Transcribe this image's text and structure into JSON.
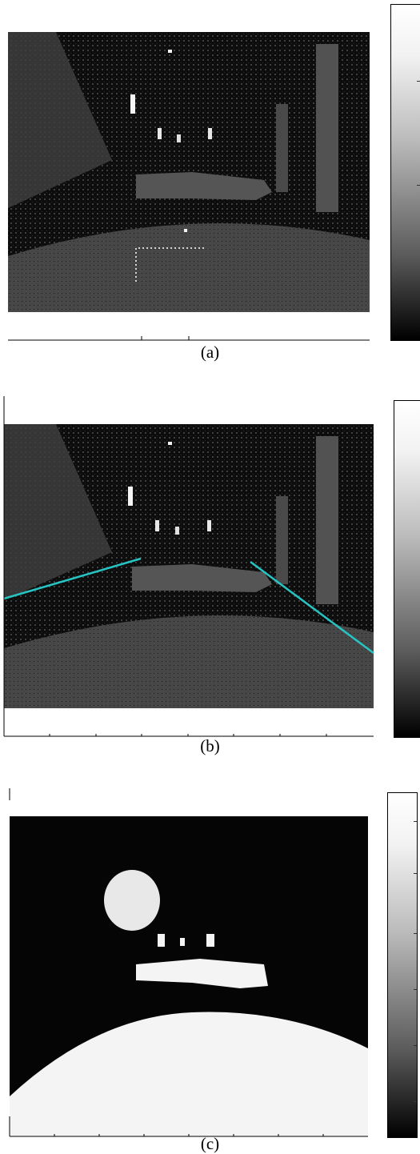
{
  "figure": {
    "panels": [
      {
        "id": "a",
        "caption": "(a)",
        "lines_shown": false,
        "roi_box_shown": true,
        "binary": false
      },
      {
        "id": "b",
        "caption": "(b)",
        "lines_shown": true,
        "line_color": "#27c4c4",
        "roi_box_shown": false,
        "binary": false
      },
      {
        "id": "c",
        "caption": "(c)",
        "lines_shown": false,
        "roi_box_shown": false,
        "binary": true
      }
    ],
    "colors": {
      "background": "#ffffff",
      "image_dark": "#0b0b0b",
      "image_mid": "#4a4a4a",
      "image_light": "#6a6a6a",
      "highlight": "#f4f4f4",
      "overlay_line": "#27c4c4"
    }
  }
}
